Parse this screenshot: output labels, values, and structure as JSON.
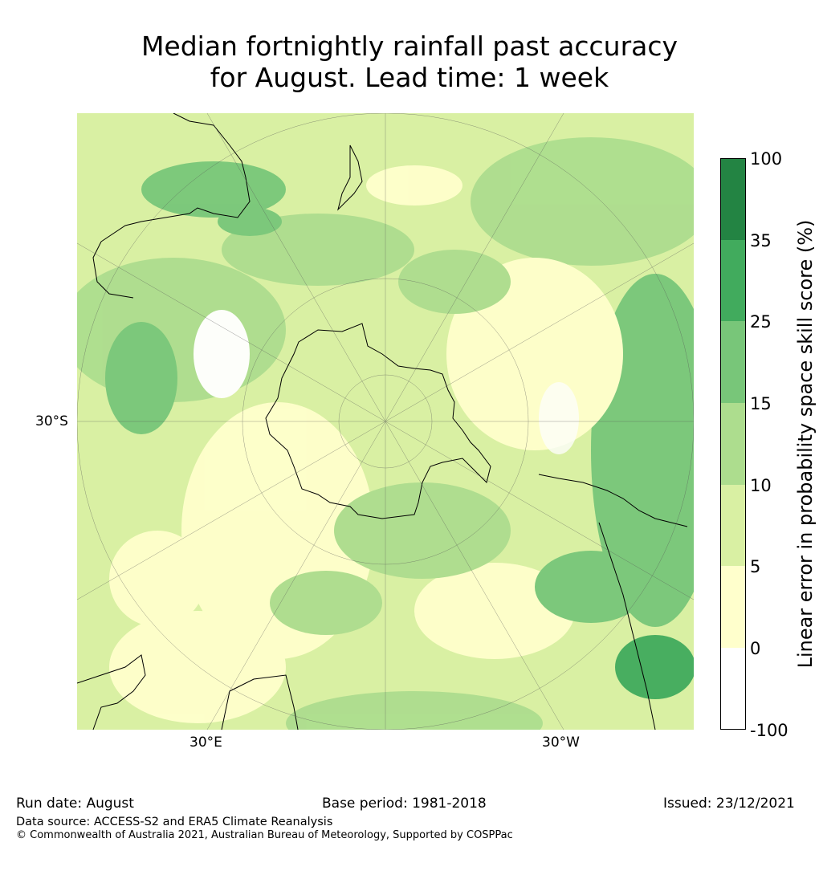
{
  "title": {
    "line1": "Median fortnightly rainfall past accuracy",
    "line2": "for August. Lead time: 1 week"
  },
  "map": {
    "projection": "south-polar stereographic",
    "latitude_labels": [
      "30°S"
    ],
    "longitude_labels": [
      "30°E",
      "30°W"
    ]
  },
  "colorbar": {
    "label": "Linear error in probability space skill score (%)",
    "ticks": [
      "100",
      "35",
      "25",
      "15",
      "10",
      "5",
      "0",
      "-100"
    ],
    "bins": [
      {
        "from": -100,
        "to": 0,
        "color": "#ffffff"
      },
      {
        "from": 0,
        "to": 5,
        "color": "#ffffcc"
      },
      {
        "from": 5,
        "to": 10,
        "color": "#d9f0a3"
      },
      {
        "from": 10,
        "to": 15,
        "color": "#addd8e"
      },
      {
        "from": 15,
        "to": 25,
        "color": "#78c679"
      },
      {
        "from": 25,
        "to": 35,
        "color": "#41ab5d"
      },
      {
        "from": 35,
        "to": 100,
        "color": "#238443"
      }
    ]
  },
  "footer": {
    "run_date": "Run date: August",
    "base_period": "Base period: 1981-2018",
    "issued": "Issued: 23/12/2021",
    "data_source": "Data source: ACCESS-S2 and ERA5 Climate Reanalysis",
    "copyright": "© Commonwealth of Australia 2021, Australian Bureau of Meteorology, Supported by COSPPac"
  }
}
